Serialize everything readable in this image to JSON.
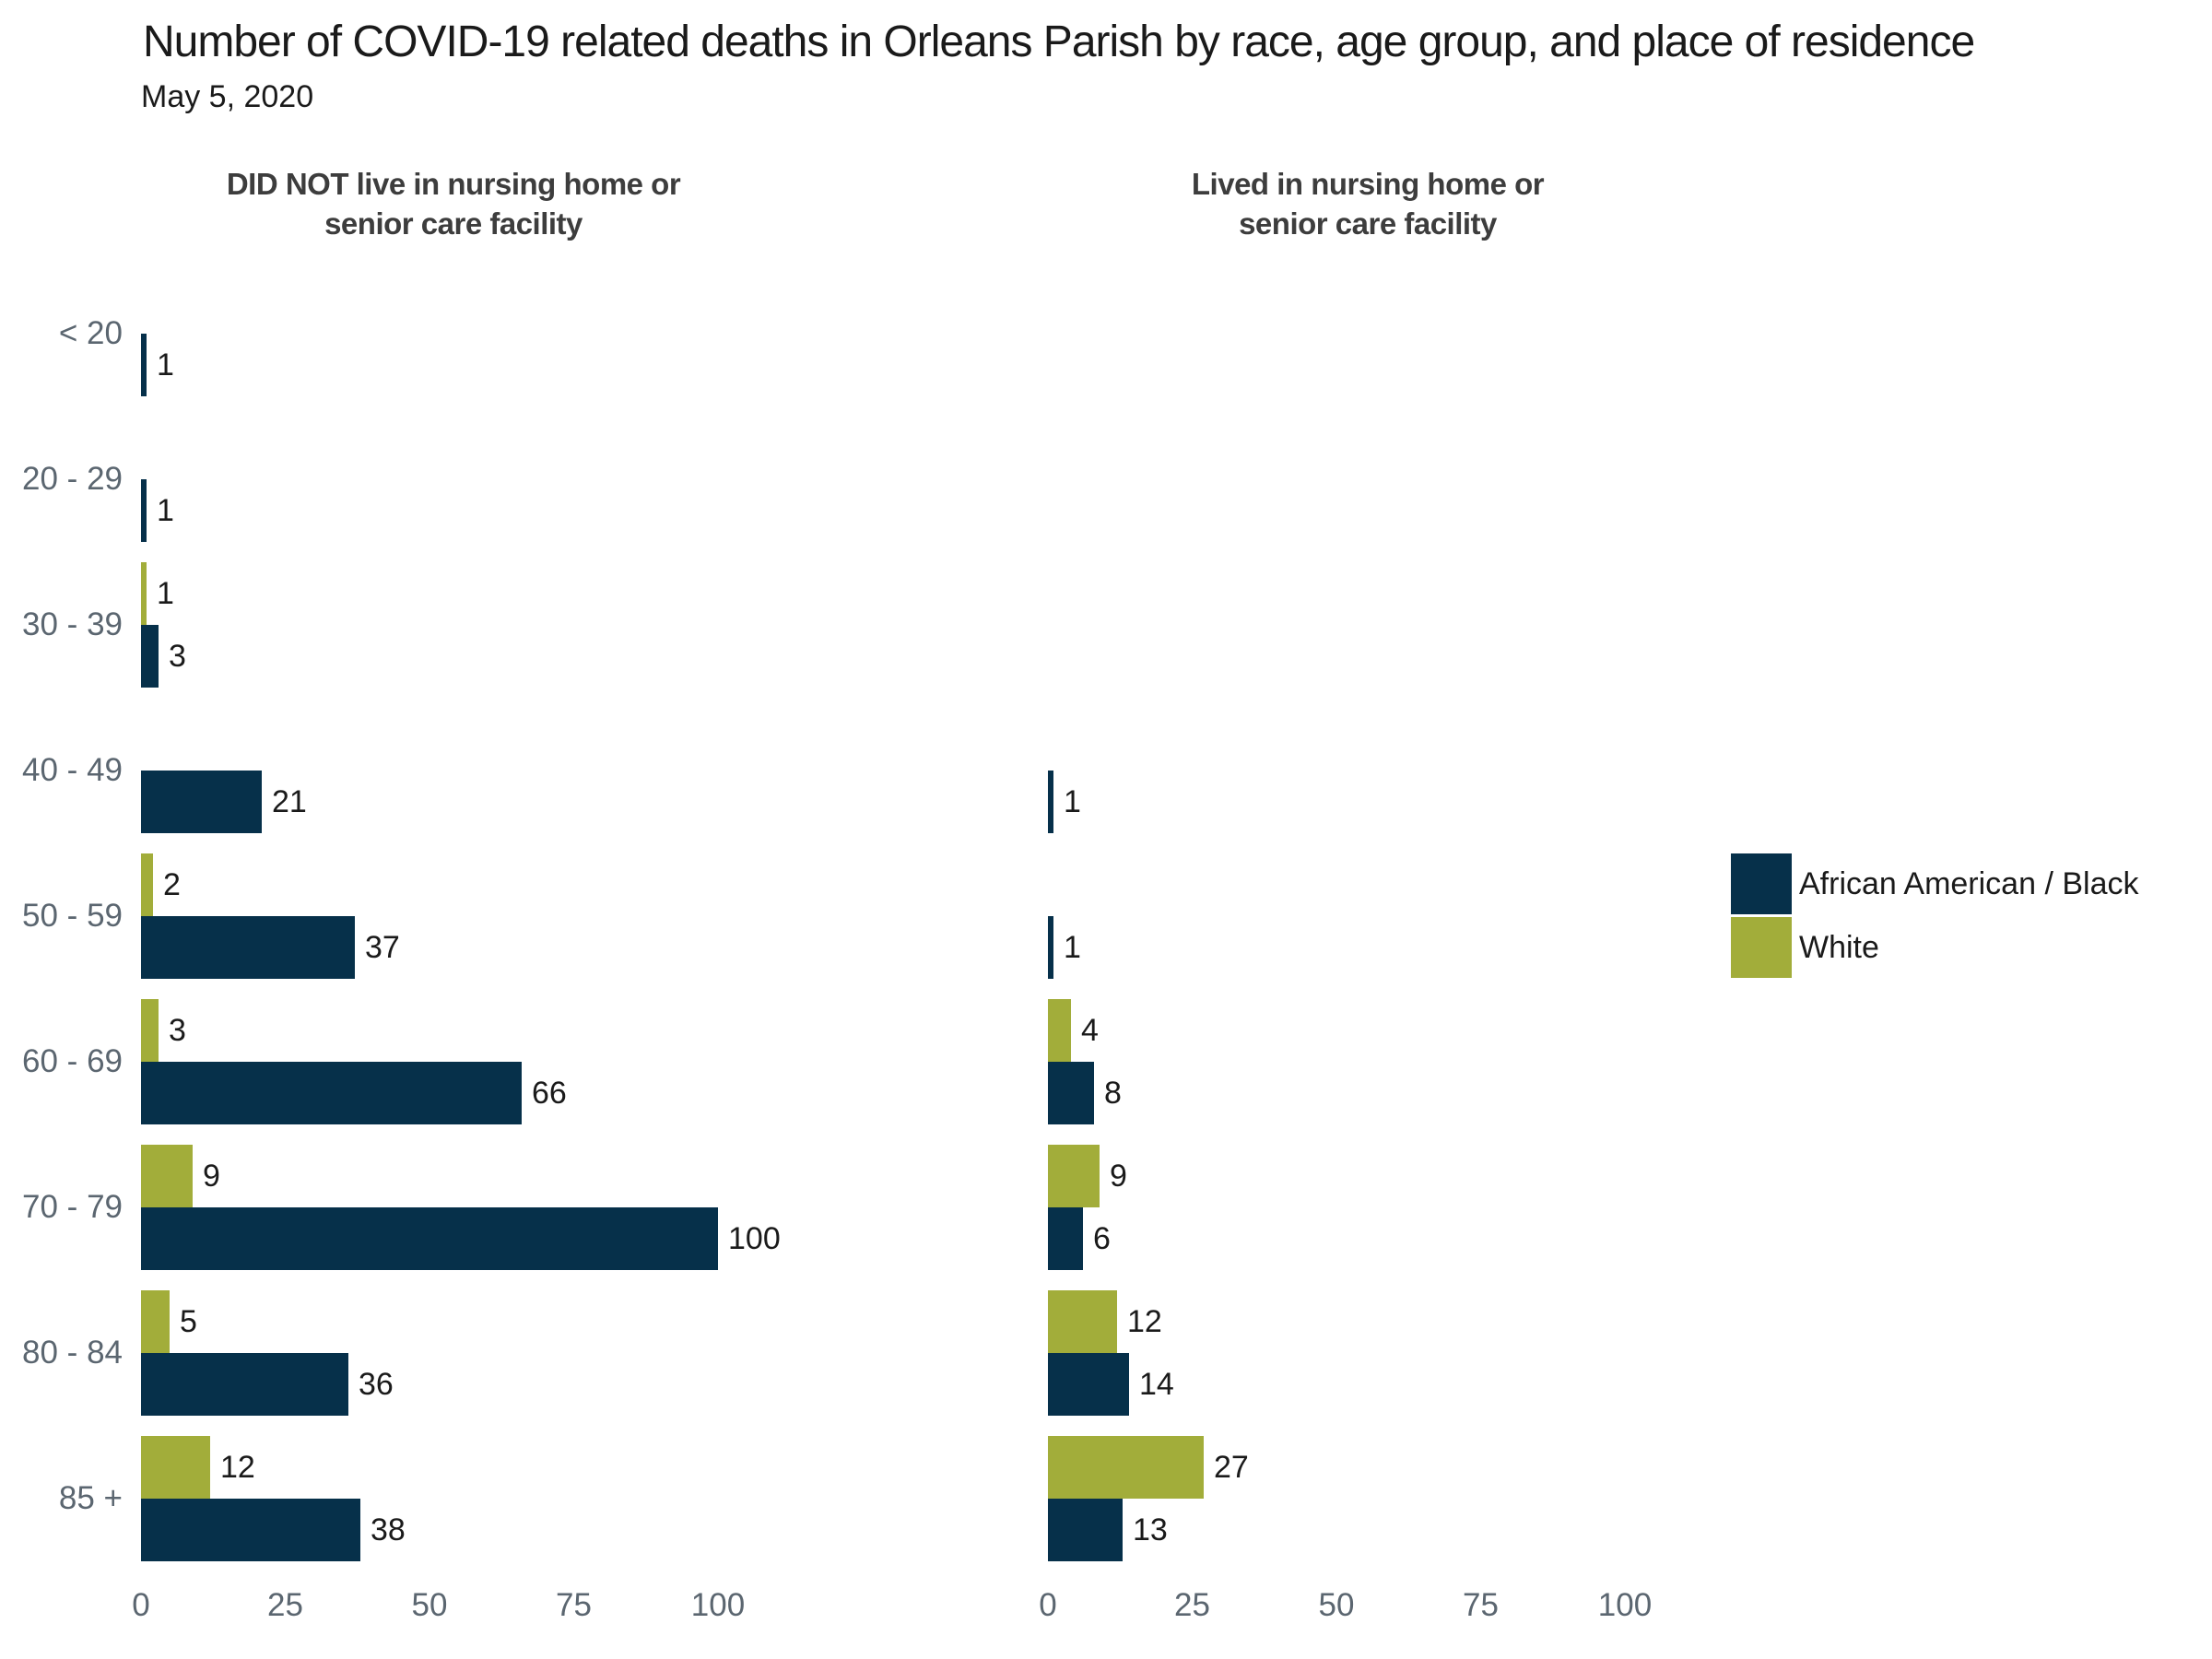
{
  "title": "Number of COVID-19 related deaths in Orleans Parish by race, age group, and place of residence",
  "subtitle": "May 5, 2020",
  "legend": {
    "items": [
      {
        "label": "African American / Black",
        "color": "#06304a"
      },
      {
        "label": "White",
        "color": "#a2ad3a"
      }
    ]
  },
  "chart_data": {
    "type": "bar",
    "orientation": "horizontal",
    "categories": [
      "< 20",
      "20 - 29",
      "30 - 39",
      "40 - 49",
      "50 - 59",
      "60 - 69",
      "70 - 79",
      "80 - 84",
      "85 +"
    ],
    "panels": [
      {
        "title": "DID NOT live in nursing home or senior care facility",
        "title_lines": [
          "DID NOT live in nursing home or",
          "senior care facility"
        ],
        "series": [
          {
            "name": "African American / Black",
            "color": "#06304a",
            "values": [
              1,
              1,
              3,
              21,
              37,
              66,
              100,
              36,
              38
            ]
          },
          {
            "name": "White",
            "color": "#a2ad3a",
            "values": [
              0,
              0,
              1,
              0,
              2,
              3,
              9,
              5,
              12
            ]
          }
        ]
      },
      {
        "title": "Lived in nursing home or senior care facility",
        "title_lines": [
          "Lived in nursing home or",
          "senior care facility"
        ],
        "series": [
          {
            "name": "African American / Black",
            "color": "#06304a",
            "values": [
              0,
              0,
              0,
              1,
              1,
              8,
              6,
              14,
              13
            ]
          },
          {
            "name": "White",
            "color": "#a2ad3a",
            "values": [
              0,
              0,
              0,
              0,
              0,
              4,
              9,
              12,
              27
            ]
          }
        ]
      }
    ],
    "xlim": [
      0,
      100
    ],
    "xticks": [
      0,
      25,
      50,
      75,
      100
    ],
    "grid": false,
    "legend_position": "center-right",
    "value_labels": true
  }
}
